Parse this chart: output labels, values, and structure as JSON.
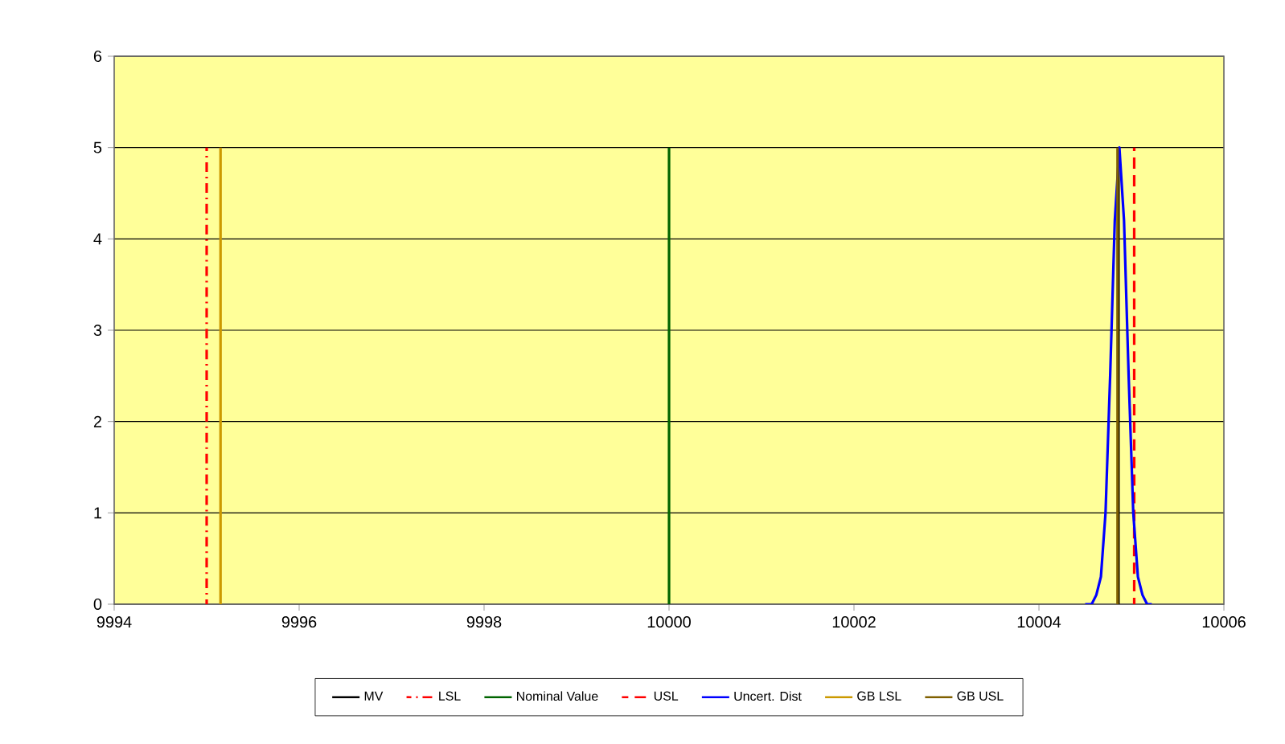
{
  "chart_data": {
    "type": "line",
    "xlim": [
      9994,
      10006
    ],
    "xticks": [
      9994,
      9996,
      9998,
      10000,
      10002,
      10004,
      10006
    ],
    "ylim": [
      0,
      6
    ],
    "yticks": [
      0,
      1,
      2,
      3,
      4,
      5,
      6
    ],
    "grid": "y",
    "legend": "bottom",
    "marker": "none",
    "series": [
      {
        "name": "MV",
        "color": "#000000",
        "line_style": "solid",
        "x": [
          10004.86,
          10004.86
        ],
        "values": [
          0,
          5
        ]
      },
      {
        "name": "LSL",
        "color": "#ff0000",
        "line_style": "dashdot",
        "x": [
          9995,
          9995
        ],
        "values": [
          0,
          5
        ]
      },
      {
        "name": "Nominal Value",
        "color": "#006400",
        "line_style": "solid",
        "x": [
          10000,
          10000
        ],
        "values": [
          0,
          5
        ]
      },
      {
        "name": "USL",
        "color": "#ff0000",
        "line_style": "dashed",
        "x": [
          10005.03,
          10005.03
        ],
        "values": [
          0,
          5
        ]
      },
      {
        "name": "Uncert. Dist",
        "color": "#0000ff",
        "line_style": "solid",
        "x": [
          10004.5,
          10004.57,
          10004.62,
          10004.67,
          10004.72,
          10004.77,
          10004.82,
          10004.87,
          10004.92,
          10004.97,
          10005.02,
          10005.07,
          10005.12,
          10005.17,
          10005.22
        ],
        "values": [
          0,
          0,
          0.1,
          0.3,
          1.0,
          2.5,
          4.2,
          5,
          4.2,
          2.5,
          1.0,
          0.3,
          0.1,
          0,
          0
        ]
      },
      {
        "name": "GB LSL",
        "color": "#cc9900",
        "line_style": "solid",
        "x": [
          9995.15,
          9995.15
        ],
        "values": [
          0,
          5
        ]
      },
      {
        "name": "GB USL",
        "color": "#806000",
        "line_style": "solid",
        "x": [
          10004.85,
          10004.85
        ],
        "values": [
          0,
          5
        ]
      }
    ]
  }
}
